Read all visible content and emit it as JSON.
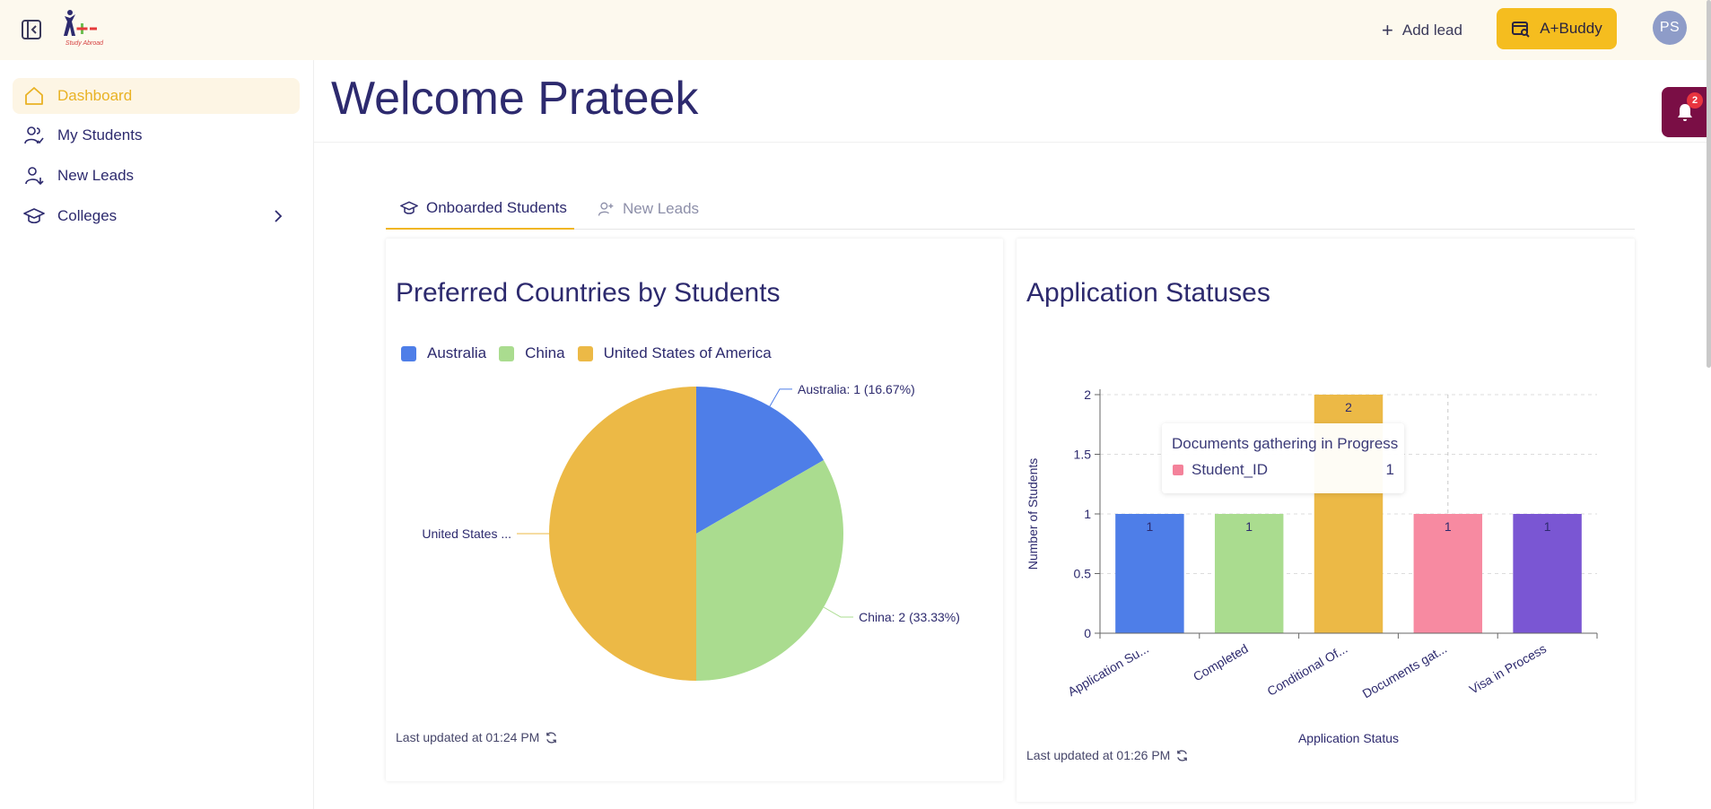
{
  "header": {
    "logo_text": "Study Abroad",
    "add_lead_label": "Add lead",
    "buddy_label": "A+Buddy",
    "avatar_initials": "PS"
  },
  "sidebar": {
    "items": [
      {
        "label": "Dashboard",
        "icon": "home-icon",
        "active": true
      },
      {
        "label": "My Students",
        "icon": "students-icon"
      },
      {
        "label": "New Leads",
        "icon": "user-add-icon"
      },
      {
        "label": "Colleges",
        "icon": "graduation-cap-icon",
        "has_submenu": true
      }
    ]
  },
  "main": {
    "welcome": "Welcome Prateek",
    "tabs": [
      {
        "label": "Onboarded Students",
        "icon": "graduation-cap-icon",
        "active": true
      },
      {
        "label": "New Leads",
        "icon": "user-add-icon",
        "active": false
      }
    ]
  },
  "notifications": {
    "count": "2"
  },
  "colors": {
    "accent": "#f5bd1f",
    "brand_text": "#2d2a6e",
    "notification_bg": "#7a0e45"
  },
  "chart_data": [
    {
      "type": "pie",
      "title": "Preferred Countries by Students",
      "legend": [
        "Australia",
        "China",
        "United States of America"
      ],
      "legend_position": "top-left",
      "slices": [
        {
          "label": "Australia",
          "value": 1,
          "percent": "16.67%",
          "color": "#4e7ee8",
          "data_label": "Australia: 1 (16.67%)"
        },
        {
          "label": "China",
          "value": 2,
          "percent": "33.33%",
          "color": "#aadc8f",
          "data_label": "China: 2 (33.33%)"
        },
        {
          "label": "United States of America",
          "value": 3,
          "percent": "50%",
          "color": "#ecb946",
          "data_label": "United States ..."
        }
      ],
      "last_updated": "Last updated at 01:24 PM"
    },
    {
      "type": "bar",
      "title": "Application Statuses",
      "categories": [
        "Application Su...",
        "Completed",
        "Conditional Of...",
        "Documents gat...",
        "Visa in Process"
      ],
      "values": [
        1,
        1,
        2,
        1,
        1
      ],
      "colors": [
        "#4e7ee8",
        "#aadc8f",
        "#ecb946",
        "#f78aa1",
        "#7a56d3"
      ],
      "xlabel": "Application Status",
      "ylabel": "Number of Students",
      "ylim": [
        0,
        2
      ],
      "yticks": [
        "0",
        "0.5",
        "1",
        "1.5",
        "2"
      ],
      "grid": true,
      "tooltip": {
        "title": "Documents gathering in Progress",
        "series": "Student_ID",
        "value": "1"
      },
      "last_updated": "Last updated at 01:26 PM"
    }
  ]
}
